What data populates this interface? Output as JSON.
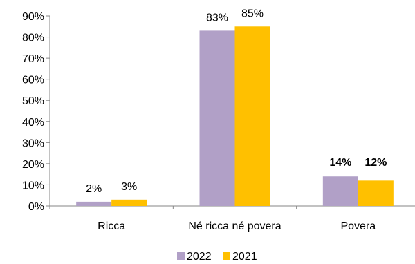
{
  "chart_data": {
    "type": "bar",
    "categories": [
      "Ricca",
      "Né ricca né povera",
      "Povera"
    ],
    "series": [
      {
        "name": "2022",
        "values": [
          2,
          83,
          14
        ],
        "labels": [
          "2%",
          "83%",
          "14%"
        ],
        "color": "#b1a0c7"
      },
      {
        "name": "2021",
        "values": [
          3,
          85,
          12
        ],
        "labels": [
          "3%",
          "85%",
          "12%"
        ],
        "color": "#ffc000"
      }
    ],
    "bold_label_categories": [
      2
    ],
    "ylim": [
      0,
      90
    ],
    "yticks": [
      0,
      10,
      20,
      30,
      40,
      50,
      60,
      70,
      80,
      90
    ],
    "ytick_labels": [
      "0%",
      "10%",
      "20%",
      "30%",
      "40%",
      "50%",
      "60%",
      "70%",
      "80%",
      "90%"
    ],
    "grid": false,
    "legend_position": "bottom",
    "title": "",
    "xlabel": "",
    "ylabel": ""
  }
}
